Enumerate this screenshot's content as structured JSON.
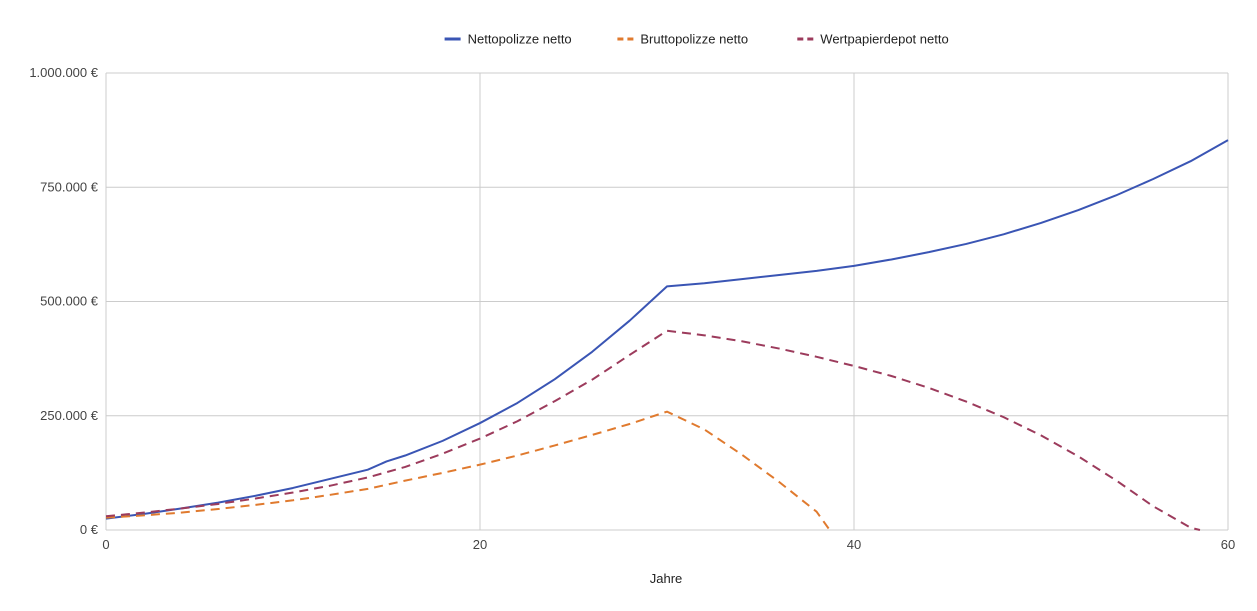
{
  "chart_data": {
    "type": "line",
    "title": "",
    "xlabel": "Jahre",
    "ylabel": "",
    "xlim": [
      0,
      60
    ],
    "ylim": [
      0,
      1000000
    ],
    "x_ticks": [
      0,
      20,
      40,
      60
    ],
    "y_ticks": [
      0,
      250000,
      500000,
      750000,
      1000000
    ],
    "x_tick_labels": [
      "0",
      "20",
      "40",
      "60"
    ],
    "y_tick_labels": [
      "0 €",
      "250.000 €",
      "500.000 €",
      "750.000 €",
      "1.000.000 €"
    ],
    "grid": true,
    "legend_position": "top",
    "series": [
      {
        "name": "Nettopolizze netto",
        "color": "#3a55b4",
        "dashed": false,
        "x": [
          0,
          2,
          4,
          6,
          8,
          10,
          12,
          14,
          15,
          16,
          18,
          20,
          22,
          24,
          26,
          28,
          30,
          32,
          34,
          36,
          38,
          40,
          42,
          44,
          46,
          48,
          50,
          52,
          54,
          56,
          58,
          60
        ],
        "y": [
          25000,
          35000,
          47000,
          60000,
          75000,
          92000,
          112000,
          132000,
          150000,
          163000,
          195000,
          234000,
          278000,
          330000,
          390000,
          458000,
          533000,
          540000,
          549000,
          558000,
          567000,
          578000,
          592000,
          608000,
          626000,
          647000,
          672000,
          700000,
          732000,
          768000,
          807000,
          853000
        ]
      },
      {
        "name": "Bruttopolizze netto",
        "color": "#e07a2e",
        "dashed": true,
        "x": [
          0,
          2,
          4,
          6,
          8,
          10,
          12,
          14,
          16,
          18,
          20,
          22,
          24,
          26,
          28,
          30,
          32,
          34,
          36,
          38,
          38.7
        ],
        "y": [
          27000,
          32000,
          38000,
          46000,
          55000,
          65000,
          77000,
          90000,
          108000,
          125000,
          143000,
          163000,
          185000,
          208000,
          232000,
          259000,
          220000,
          165000,
          105000,
          40000,
          0
        ]
      },
      {
        "name": "Wertpapierdepot netto",
        "color": "#9c3b5c",
        "dashed": true,
        "x": [
          0,
          2,
          4,
          6,
          8,
          10,
          12,
          14,
          16,
          18,
          20,
          22,
          24,
          26,
          28,
          30,
          32,
          34,
          36,
          38,
          40,
          42,
          44,
          46,
          48,
          50,
          52,
          54,
          56,
          58,
          58.5
        ],
        "y": [
          30000,
          38000,
          47000,
          57000,
          69000,
          82000,
          97000,
          115000,
          138000,
          167000,
          200000,
          238000,
          282000,
          329000,
          383000,
          436000,
          426000,
          413000,
          397000,
          379000,
          359000,
          337000,
          311000,
          281000,
          247000,
          207000,
          161000,
          109000,
          52000,
          5000,
          0
        ]
      }
    ]
  }
}
